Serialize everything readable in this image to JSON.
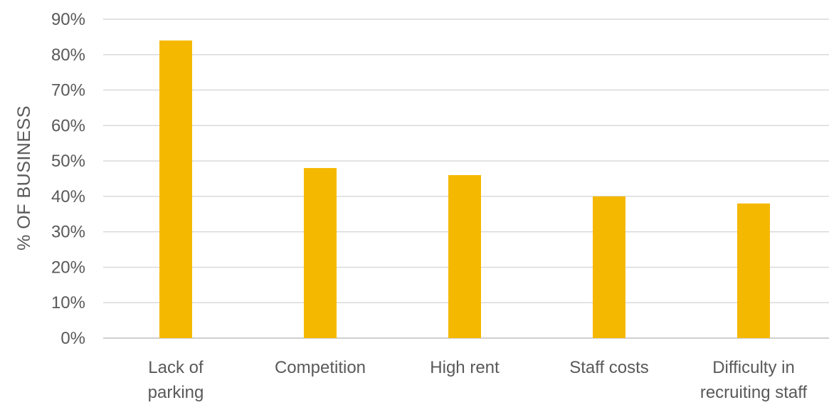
{
  "chart_data": {
    "type": "bar",
    "title": "",
    "xlabel": "",
    "ylabel": "% OF BUSINESS",
    "categories": [
      [
        "Lack of",
        "parking"
      ],
      [
        "Competition"
      ],
      [
        "High rent"
      ],
      [
        "Staff costs"
      ],
      [
        "Difficulty in",
        "recruiting staff"
      ]
    ],
    "values": [
      84,
      48,
      46,
      40,
      38
    ],
    "value_unit": "%",
    "ylim": [
      0,
      90
    ],
    "yticks": [
      0,
      10,
      20,
      30,
      40,
      50,
      60,
      70,
      80,
      90
    ],
    "ytick_labels": [
      "0%",
      "10%",
      "20%",
      "30%",
      "40%",
      "50%",
      "60%",
      "70%",
      "80%",
      "90%"
    ],
    "grid": true,
    "legend": "none",
    "bar_color": "#f5b800"
  }
}
